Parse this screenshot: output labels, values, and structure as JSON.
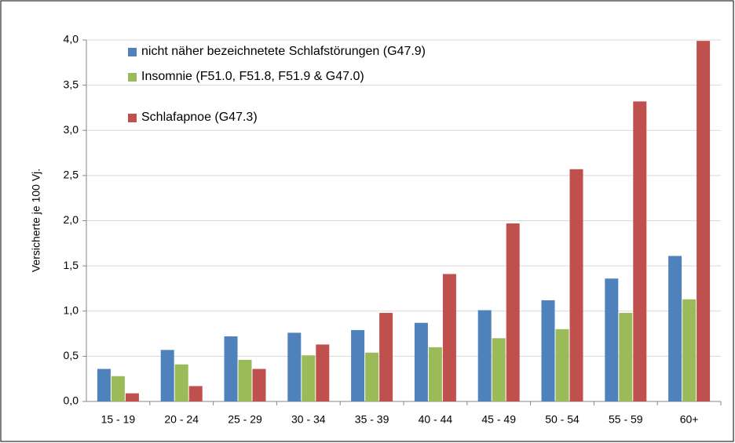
{
  "chart_data": {
    "type": "bar",
    "y_label": "Versicherte  je 100 Vj.",
    "categories": [
      "15 - 19",
      "20 - 24",
      "25 - 29",
      "30 - 34",
      "35 - 39",
      "40 - 44",
      "45 - 49",
      "50 - 54",
      "55 - 59",
      "60+"
    ],
    "series": [
      {
        "name": "nicht näher bezeichnetete Schlafstörungen (G47.9)",
        "color": "#4f81bd",
        "values": [
          0.36,
          0.57,
          0.72,
          0.76,
          0.79,
          0.87,
          1.01,
          1.12,
          1.36,
          1.61
        ]
      },
      {
        "name": "Insomnie (F51.0, F51.8, F51.9 & G47.0)",
        "color": "#9bbb59",
        "values": [
          0.28,
          0.41,
          0.46,
          0.51,
          0.54,
          0.6,
          0.7,
          0.8,
          0.98,
          1.13
        ]
      },
      {
        "name": "Schlafapnoe (G47.3)",
        "color": "#c0504d",
        "values": [
          0.09,
          0.17,
          0.36,
          0.63,
          0.98,
          1.41,
          1.97,
          2.57,
          3.32,
          3.99
        ]
      }
    ],
    "ylim": [
      0,
      4
    ],
    "yticks": [
      {
        "value": 0,
        "label": "0,0"
      },
      {
        "value": 0.5,
        "label": "0,5"
      },
      {
        "value": 1,
        "label": "1,0"
      },
      {
        "value": 1.5,
        "label": "1,5"
      },
      {
        "value": 2,
        "label": "2,0"
      },
      {
        "value": 2.5,
        "label": "2,5"
      },
      {
        "value": 3,
        "label": "3,0"
      },
      {
        "value": 3.5,
        "label": "3,5"
      },
      {
        "value": 4,
        "label": "4,0"
      }
    ],
    "grid": true,
    "legend": "top-left"
  }
}
